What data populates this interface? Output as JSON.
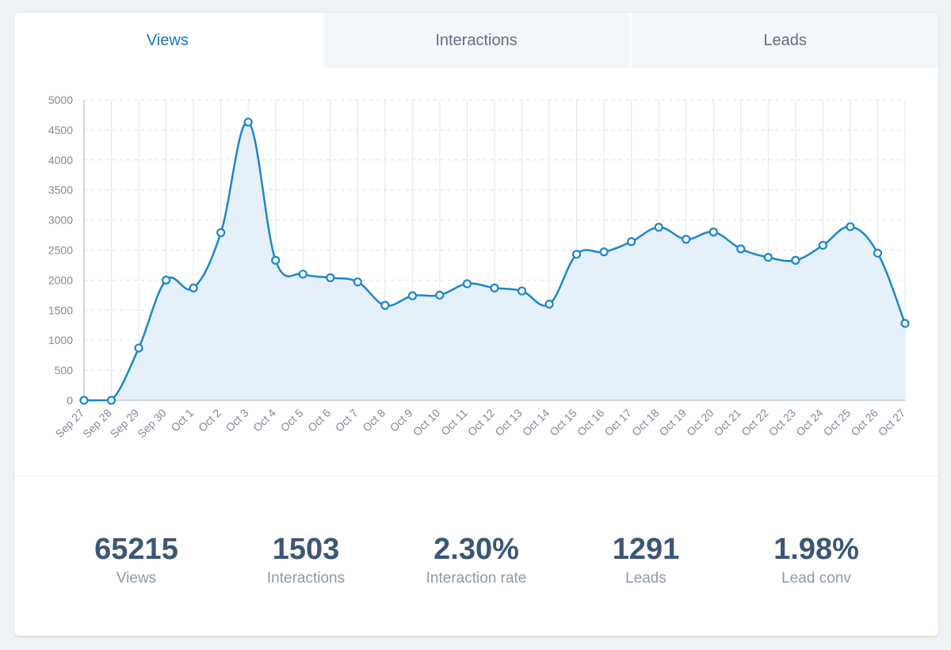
{
  "tabs": [
    {
      "label": "Views",
      "active": true
    },
    {
      "label": "Interactions",
      "active": false
    },
    {
      "label": "Leads",
      "active": false
    }
  ],
  "colors": {
    "accent": "#1a86d0",
    "area_fill": "#e6f0fa",
    "grid": "#d9dee3",
    "axis_text": "#7f8b97"
  },
  "chart_data": {
    "type": "area",
    "title": "",
    "xlabel": "",
    "ylabel": "",
    "ylim": [
      0,
      5000
    ],
    "yticks": [
      0,
      500,
      1000,
      1500,
      2000,
      2500,
      3000,
      3500,
      4000,
      4500,
      5000
    ],
    "grid": true,
    "categories": [
      "Sep 27",
      "Sep 28",
      "Sep 29",
      "Sep 30",
      "Oct 1",
      "Oct 2",
      "Oct 3",
      "Oct 4",
      "Oct 5",
      "Oct 6",
      "Oct 7",
      "Oct 8",
      "Oct 9",
      "Oct 10",
      "Oct 11",
      "Oct 12",
      "Oct 13",
      "Oct 14",
      "Oct 15",
      "Oct 16",
      "Oct 17",
      "Oct 18",
      "Oct 19",
      "Oct 20",
      "Oct 21",
      "Oct 22",
      "Oct 23",
      "Oct 24",
      "Oct 25",
      "Oct 26",
      "Oct 27"
    ],
    "series": [
      {
        "values": [
          0,
          0,
          870,
          2000,
          1870,
          2790,
          4630,
          2330,
          2100,
          2040,
          1970,
          1580,
          1740,
          1750,
          1940,
          1870,
          1820,
          1600,
          2430,
          2470,
          2640,
          2880,
          2680,
          2800,
          2520,
          2380,
          2330,
          2580,
          2890,
          2450,
          1280
        ]
      }
    ]
  },
  "stats": [
    {
      "value": "65215",
      "label": "Views"
    },
    {
      "value": "1503",
      "label": "Interactions"
    },
    {
      "value": "2.30%",
      "label": "Interaction rate"
    },
    {
      "value": "1291",
      "label": "Leads"
    },
    {
      "value": "1.98%",
      "label": "Lead conv"
    }
  ]
}
